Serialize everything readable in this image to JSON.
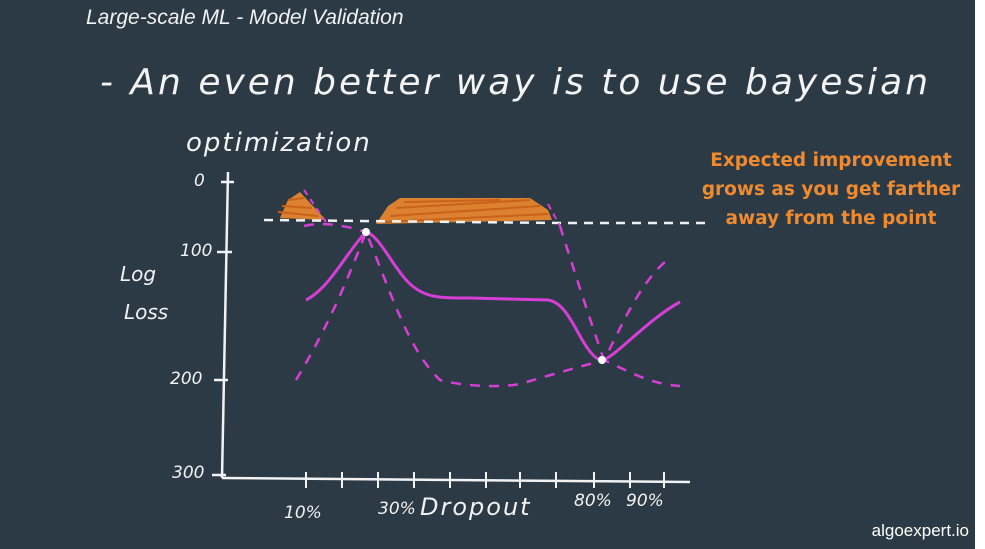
{
  "slide": {
    "title": "Large-scale ML - Model Validation",
    "bullet_line1": "- An even better way is to use bayesian",
    "bullet_line2": "optimization",
    "annotation": "Expected improvement grows as you get farther away from the point",
    "watermark": "algoexpert.io"
  },
  "axes": {
    "y_label_line1": "Log",
    "y_label_line2": "Loss",
    "y_ticks": [
      "0",
      "100",
      "200",
      "300"
    ],
    "x_ticks": [
      "10%",
      "30%",
      "80%",
      "90%"
    ],
    "x_label": "Dropout"
  },
  "colors": {
    "background": "#2c3a45",
    "chalk": "#f2f2f2",
    "curve": "#d63fd6",
    "highlight": "#f08a2e"
  }
}
